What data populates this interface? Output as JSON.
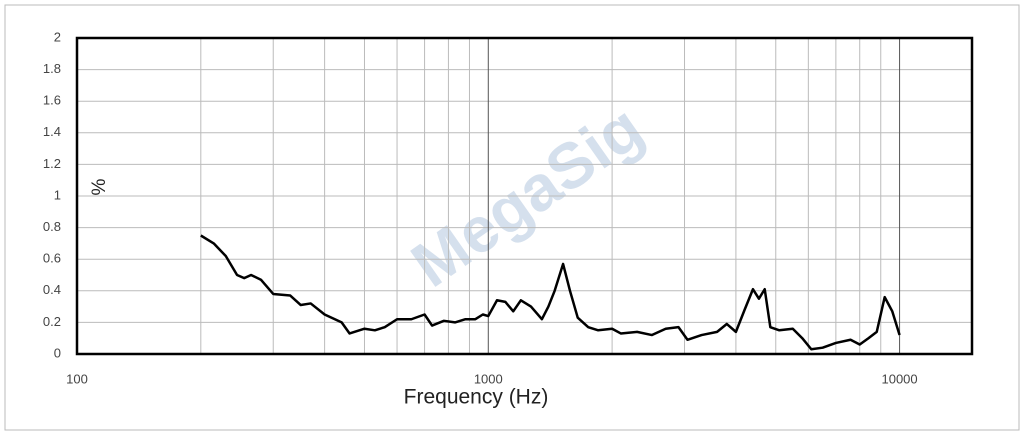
{
  "chart_data": {
    "type": "line",
    "x_label": "Frequency (Hz)",
    "y_label": "%",
    "watermark": "MegaSig",
    "log_x": true,
    "grid": true,
    "xlim": [
      100,
      15000
    ],
    "xticks": [
      100,
      1000,
      10000
    ],
    "xgrid": [
      200,
      300,
      400,
      500,
      600,
      700,
      800,
      900,
      1000,
      2000,
      3000,
      4000,
      5000,
      6000,
      7000,
      8000,
      9000,
      10000
    ],
    "ylim": [
      0,
      2
    ],
    "yticks": [
      0,
      0.2,
      0.4,
      0.6,
      0.8,
      1,
      1.2,
      1.4,
      1.6,
      1.8,
      2
    ],
    "x": [
      200,
      215,
      230,
      245,
      255,
      265,
      280,
      300,
      330,
      350,
      370,
      400,
      440,
      460,
      500,
      530,
      560,
      600,
      650,
      700,
      730,
      780,
      830,
      880,
      930,
      970,
      1000,
      1050,
      1100,
      1150,
      1200,
      1270,
      1350,
      1400,
      1450,
      1520,
      1580,
      1650,
      1750,
      1850,
      2000,
      2100,
      2300,
      2500,
      2700,
      2900,
      3050,
      3300,
      3600,
      3800,
      4000,
      4200,
      4400,
      4550,
      4700,
      4850,
      5100,
      5500,
      5800,
      6100,
      6500,
      7000,
      7600,
      8000,
      8400,
      8800,
      9200,
      9600,
      10000
    ],
    "series": [
      {
        "color": "#000000",
        "values": [
          0.75,
          0.7,
          0.62,
          0.5,
          0.48,
          0.5,
          0.47,
          0.38,
          0.37,
          0.31,
          0.32,
          0.25,
          0.2,
          0.13,
          0.16,
          0.15,
          0.17,
          0.22,
          0.22,
          0.25,
          0.18,
          0.21,
          0.2,
          0.22,
          0.22,
          0.25,
          0.24,
          0.34,
          0.33,
          0.27,
          0.34,
          0.3,
          0.22,
          0.3,
          0.4,
          0.57,
          0.4,
          0.23,
          0.17,
          0.15,
          0.16,
          0.13,
          0.14,
          0.12,
          0.16,
          0.17,
          0.09,
          0.12,
          0.14,
          0.19,
          0.14,
          0.28,
          0.41,
          0.35,
          0.41,
          0.17,
          0.15,
          0.16,
          0.1,
          0.03,
          0.04,
          0.07,
          0.09,
          0.06,
          0.1,
          0.14,
          0.36,
          0.27,
          0.12
        ]
      }
    ]
  }
}
